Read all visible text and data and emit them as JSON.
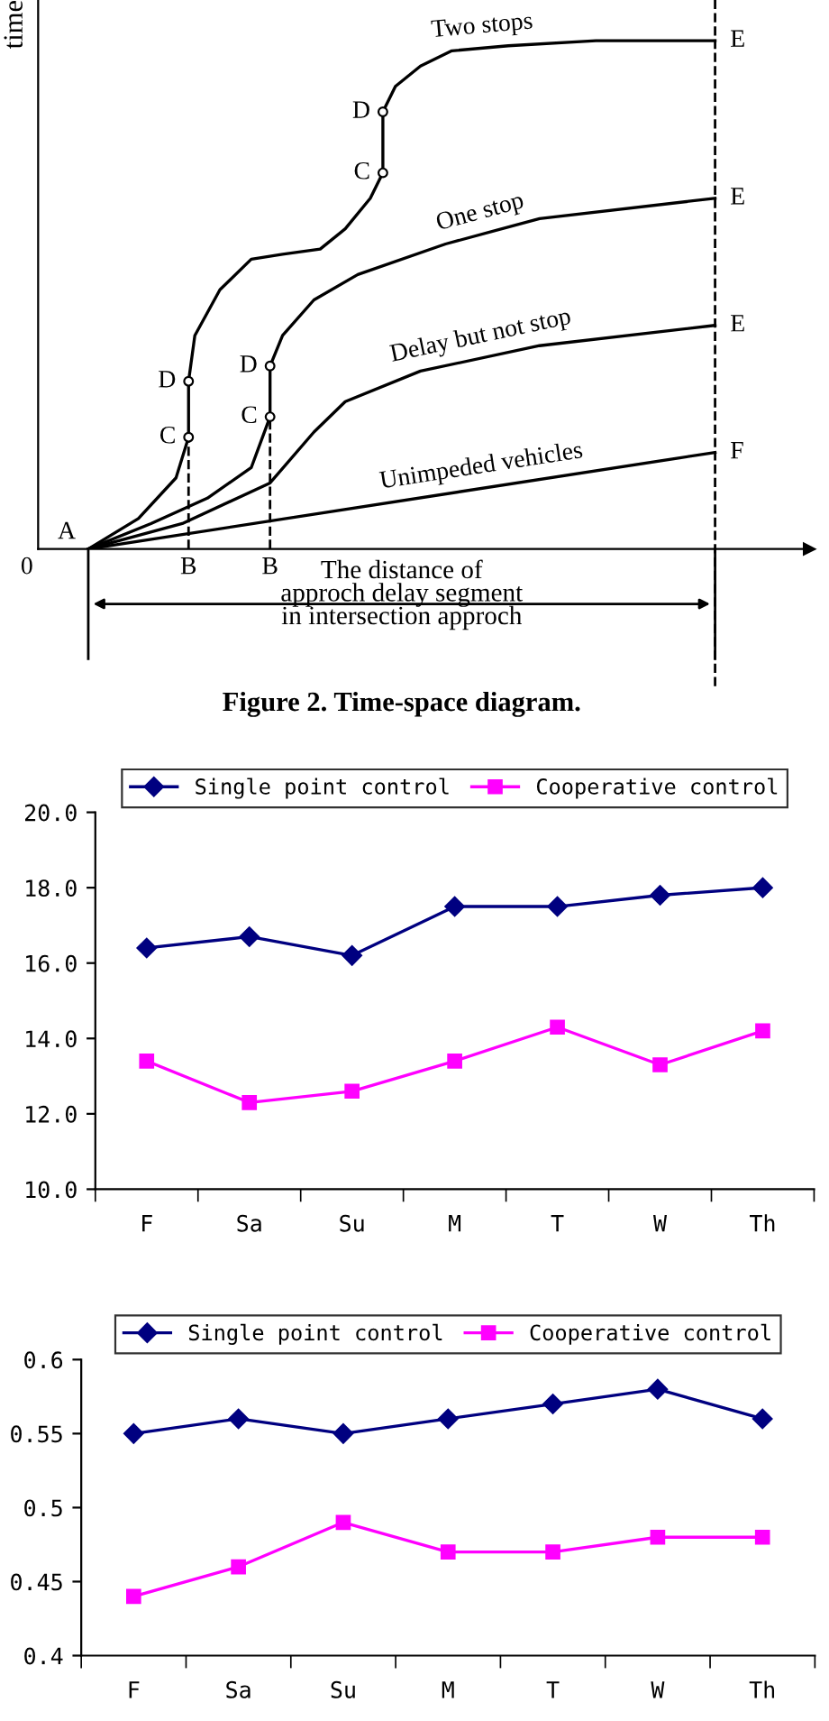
{
  "chart_data": [
    {
      "type": "other",
      "ylabel": "time",
      "annotations": [
        "0",
        "A",
        "B",
        "B",
        "C",
        "D",
        "C",
        "D",
        "C",
        "D",
        "E",
        "E",
        "E",
        "F",
        "Two stops",
        "One stop",
        "Delay but not stop",
        "Unimpeded vehicles",
        "The distance of\napproch delay segment\nin intersection approch",
        "Figure 2. Time-space diagram."
      ]
    },
    {
      "type": "line",
      "categories": [
        "F",
        "Sa",
        "Su",
        "M",
        "T",
        "W",
        "Th"
      ],
      "ylim": [
        10,
        20
      ],
      "yticks": [
        {
          "value": 10,
          "label": "10.0"
        },
        {
          "value": 12,
          "label": "12.0"
        },
        {
          "value": 14,
          "label": "14.0"
        },
        {
          "value": 16,
          "label": "16.0"
        },
        {
          "value": 18,
          "label": "18.0"
        },
        {
          "value": 20,
          "label": "20.0"
        }
      ],
      "legend": "top",
      "grid": false,
      "series": [
        {
          "name": "Single point control",
          "color": "#000080",
          "marker": "diamond",
          "values": [
            16.4,
            16.7,
            16.2,
            17.5,
            17.5,
            17.8,
            18.0
          ]
        },
        {
          "name": "Cooperative control",
          "color": "#ff00ff",
          "marker": "square",
          "values": [
            13.4,
            12.3,
            12.6,
            13.4,
            14.3,
            13.3,
            14.2
          ]
        }
      ]
    },
    {
      "type": "line",
      "categories": [
        "F",
        "Sa",
        "Su",
        "M",
        "T",
        "W",
        "Th"
      ],
      "ylim": [
        0.4,
        0.6
      ],
      "yticks": [
        0.4,
        0.45,
        0.5,
        0.55,
        0.6
      ],
      "legend": "top",
      "grid": false,
      "series": [
        {
          "name": "Single point control",
          "color": "#000080",
          "marker": "diamond",
          "values": [
            0.55,
            0.56,
            0.55,
            0.56,
            0.57,
            0.58,
            0.56
          ]
        },
        {
          "name": "Cooperative control",
          "color": "#ff00ff",
          "marker": "square",
          "values": [
            0.44,
            0.46,
            0.49,
            0.47,
            0.47,
            0.48,
            0.48
          ]
        }
      ]
    }
  ]
}
